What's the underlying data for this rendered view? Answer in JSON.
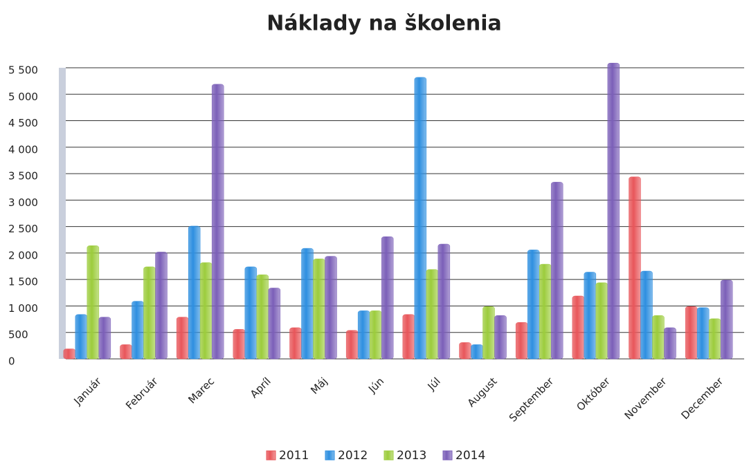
{
  "chart_data": {
    "type": "bar",
    "title": "Náklady na školenia",
    "categories": [
      "Január",
      "Február",
      "Marec",
      "Apríl",
      "Máj",
      "Jún",
      "Júl",
      "August",
      "September",
      "Október",
      "November",
      "December"
    ],
    "series": [
      {
        "name": "2011",
        "color": "#e8565a",
        "values": [
          150,
          230,
          750,
          520,
          550,
          500,
          800,
          270,
          650,
          1150,
          3400,
          950
        ]
      },
      {
        "name": "2012",
        "color": "#2e8fe0",
        "values": [
          800,
          1050,
          2470,
          1700,
          2050,
          870,
          5280,
          230,
          2020,
          1600,
          1620,
          930
        ]
      },
      {
        "name": "2013",
        "color": "#9ccc3c",
        "values": [
          2100,
          1700,
          1780,
          1550,
          1850,
          870,
          1650,
          950,
          1750,
          1400,
          780,
          720
        ]
      },
      {
        "name": "2014",
        "color": "#7b5fb8",
        "values": [
          750,
          1980,
          5150,
          1300,
          1900,
          2270,
          2130,
          780,
          3300,
          5550,
          550,
          1450
        ]
      }
    ],
    "ylim": [
      0,
      5500
    ],
    "yticks": [
      0,
      500,
      {
        "value": 1000,
        "label": "1 000"
      },
      {
        "value": 1500,
        "label": "1 500"
      },
      {
        "value": 2000,
        "label": "2 000"
      },
      {
        "value": 2500,
        "label": "2 500"
      },
      {
        "value": 3000,
        "label": "3 000"
      },
      {
        "value": 3500,
        "label": "3 500"
      },
      {
        "value": 4000,
        "label": "4 000"
      },
      {
        "value": 4500,
        "label": "4 500"
      },
      {
        "value": 5000,
        "label": "5 000"
      },
      {
        "value": 5500,
        "label": "5 500"
      }
    ],
    "grid": true,
    "legend": "bottom"
  }
}
